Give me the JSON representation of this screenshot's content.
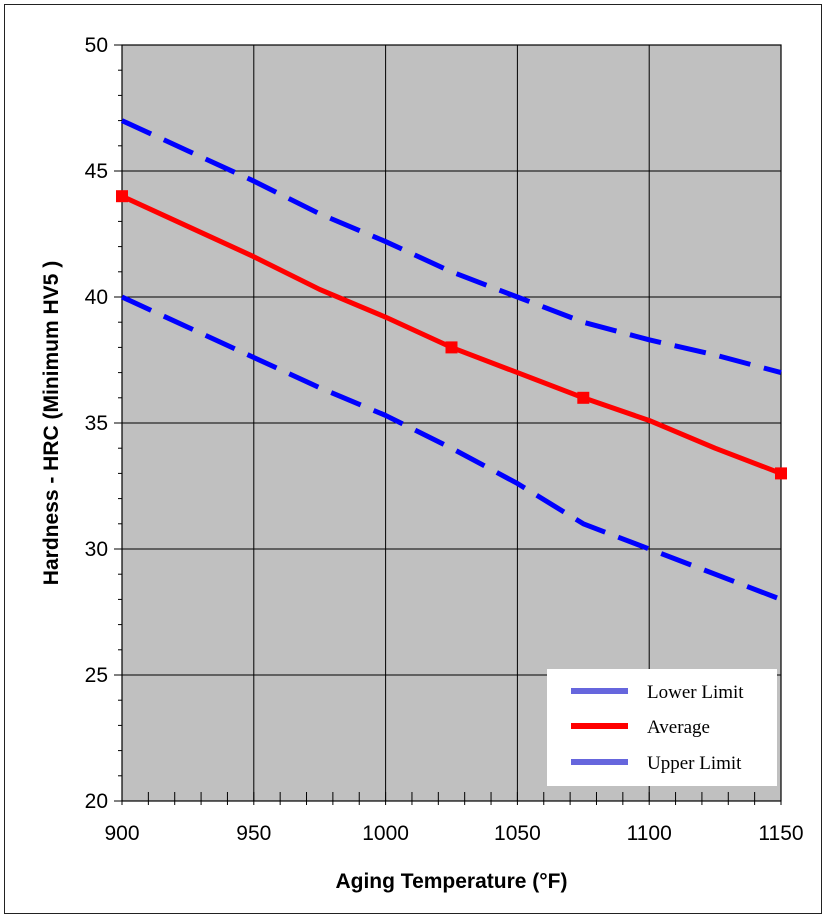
{
  "chart_data": {
    "type": "line",
    "xlabel": "Aging Temperature (°F)",
    "ylabel": "Hardness - HRC   (Minimum HV5 )",
    "xlim": [
      900,
      1150
    ],
    "ylim": [
      20,
      50
    ],
    "xticks": [
      900,
      950,
      1000,
      1050,
      1100,
      1150
    ],
    "yticks": [
      20,
      25,
      30,
      35,
      40,
      45,
      50
    ],
    "grid": true,
    "legend_position": "bottom-right",
    "plot_background": "#c0c0c0",
    "series": [
      {
        "name": "Lower Limit",
        "color": "#0000ff",
        "legend_color": "#6666dd",
        "style": "dashed",
        "x": [
          900,
          925,
          950,
          975,
          1000,
          1025,
          1050,
          1075,
          1100,
          1125,
          1150
        ],
        "y": [
          40,
          38.8,
          37.6,
          36.4,
          35.3,
          34.0,
          32.6,
          31.0,
          30.0,
          29.0,
          28.0
        ]
      },
      {
        "name": "Average",
        "color": "#ff0000",
        "legend_color": "#ff0000",
        "style": "solid",
        "markers": [
          [
            900,
            44
          ],
          [
            1025,
            38
          ],
          [
            1075,
            36
          ],
          [
            1150,
            33
          ]
        ],
        "x": [
          900,
          925,
          950,
          975,
          1000,
          1025,
          1050,
          1075,
          1100,
          1125,
          1150
        ],
        "y": [
          44,
          42.8,
          41.6,
          40.3,
          39.2,
          38.0,
          37.0,
          36.0,
          35.1,
          34.0,
          33.0
        ]
      },
      {
        "name": "Upper Limit",
        "color": "#0000ff",
        "legend_color": "#6666dd",
        "style": "dashed",
        "x": [
          900,
          925,
          950,
          975,
          1000,
          1025,
          1050,
          1075,
          1100,
          1125,
          1150
        ],
        "y": [
          47,
          45.8,
          44.6,
          43.3,
          42.2,
          41.0,
          40.0,
          39.0,
          38.3,
          37.7,
          37.0
        ]
      }
    ]
  }
}
